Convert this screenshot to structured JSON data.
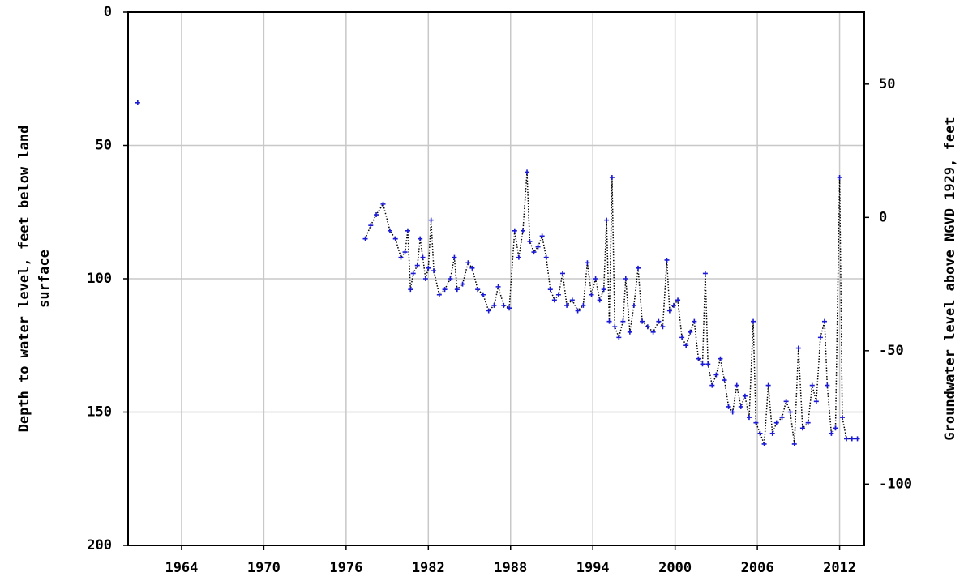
{
  "chart_data": {
    "type": "scatter-line",
    "ylabel": [
      "Depth to water level, feet below land",
      "surface"
    ],
    "y2label": "Groundwater level above NGVD 1929, feet",
    "xlim": [
      1960.1,
      2013.8
    ],
    "xticks": [
      1964,
      1970,
      1976,
      1982,
      1988,
      1994,
      2000,
      2006,
      2012
    ],
    "ylim": [
      200,
      0
    ],
    "yticks": [
      0,
      50,
      100,
      150,
      200
    ],
    "y2lim": [
      -123,
      77
    ],
    "y2ticks": [
      50,
      0,
      -50,
      -100
    ],
    "grid": true,
    "marker_color": "#1a1ad6",
    "line_color": "#000000",
    "x": [
      1960.8,
      null,
      1977.4,
      1977.8,
      1978.2,
      1978.7,
      1979.2,
      1979.6,
      1980.0,
      1980.3,
      1980.5,
      1980.7,
      1980.9,
      1981.2,
      1981.4,
      1981.6,
      1981.8,
      1982.0,
      1982.2,
      1982.4,
      1982.8,
      1983.2,
      1983.6,
      1983.9,
      1984.1,
      1984.5,
      1984.9,
      1985.2,
      1985.6,
      1986.0,
      1986.4,
      1986.8,
      1987.1,
      1987.5,
      1987.9,
      1988.3,
      1988.6,
      1988.9,
      1989.2,
      1989.4,
      1989.7,
      1990.0,
      1990.3,
      1990.6,
      1990.9,
      1991.2,
      1991.5,
      1991.8,
      1992.1,
      1992.5,
      1992.9,
      1993.3,
      1993.6,
      1993.9,
      1994.2,
      1994.5,
      1994.8,
      1995.0,
      1995.2,
      1995.4,
      1995.6,
      1995.9,
      1996.2,
      1996.4,
      1996.7,
      1997.0,
      1997.3,
      1997.6,
      1998.0,
      1998.4,
      1998.8,
      1999.1,
      1999.4,
      1999.6,
      1999.9,
      2000.2,
      2000.5,
      2000.8,
      2001.1,
      2001.4,
      2001.7,
      2002.0,
      2002.2,
      2002.4,
      2002.7,
      2003.0,
      2003.3,
      2003.6,
      2003.9,
      2004.2,
      2004.5,
      2004.8,
      2005.1,
      2005.4,
      2005.7,
      2005.9,
      2006.2,
      2006.5,
      2006.8,
      2007.1,
      2007.4,
      2007.8,
      2008.1,
      2008.4,
      2008.7,
      2009.0,
      2009.3,
      2009.7,
      2010.0,
      2010.3,
      2010.6,
      2010.9,
      2011.1,
      2011.4,
      2011.7,
      2012.0,
      2012.2,
      2012.5,
      2012.9,
      2013.3
    ],
    "values": [
      34,
      null,
      85,
      80,
      76,
      72,
      82,
      85,
      92,
      90,
      82,
      104,
      98,
      95,
      85,
      92,
      100,
      96,
      78,
      97,
      106,
      104,
      100,
      92,
      104,
      102,
      94,
      96,
      104,
      106,
      112,
      110,
      103,
      110,
      111,
      82,
      92,
      82,
      60,
      86,
      90,
      88,
      84,
      92,
      104,
      108,
      106,
      98,
      110,
      108,
      112,
      110,
      94,
      106,
      100,
      108,
      104,
      78,
      116,
      62,
      118,
      122,
      116,
      100,
      120,
      110,
      96,
      116,
      118,
      120,
      116,
      118,
      93,
      112,
      110,
      108,
      122,
      125,
      120,
      116,
      130,
      132,
      98,
      132,
      140,
      136,
      130,
      138,
      148,
      150,
      140,
      148,
      144,
      152,
      116,
      154,
      158,
      162,
      140,
      158,
      154,
      152,
      146,
      150,
      162,
      126,
      156,
      154,
      140,
      146,
      122,
      116,
      140,
      158,
      156,
      62,
      152,
      160,
      160,
      160
    ]
  }
}
